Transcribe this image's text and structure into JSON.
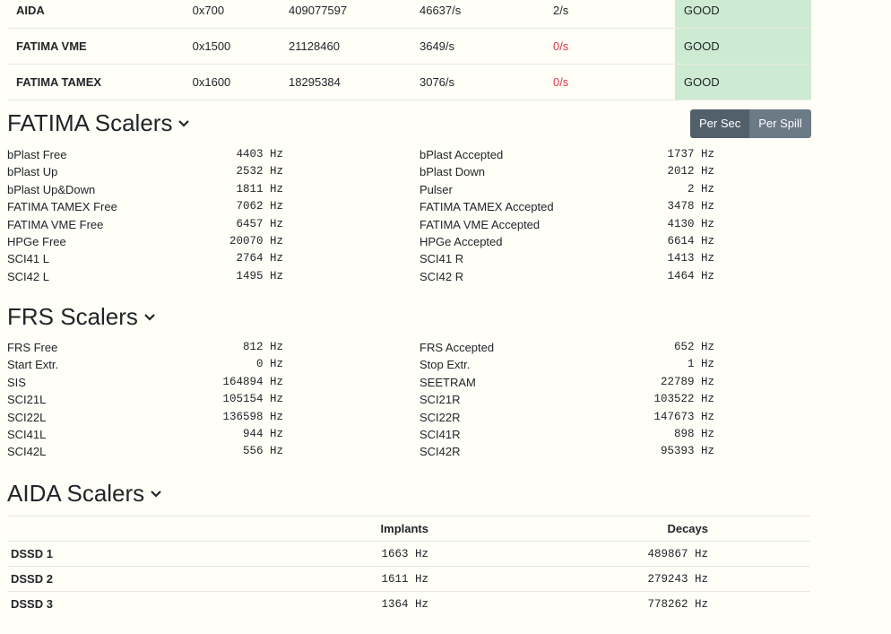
{
  "detectors": [
    {
      "name": "AIDA",
      "address": "0x700",
      "count": "409077597",
      "rate": "46637/s",
      "errors": "2/s",
      "errors_bad": false,
      "status": "GOOD"
    },
    {
      "name": "FATIMA VME",
      "address": "0x1500",
      "count": "21128460",
      "rate": "3649/s",
      "errors": "0/s",
      "errors_bad": true,
      "status": "GOOD"
    },
    {
      "name": "FATIMA TAMEX",
      "address": "0x1600",
      "count": "18295384",
      "rate": "3076/s",
      "errors": "0/s",
      "errors_bad": true,
      "status": "GOOD"
    }
  ],
  "fatima": {
    "title": "FATIMA Scalers",
    "per_sec_label": "Per Sec",
    "per_spill_label": "Per Spill",
    "rows": [
      {
        "l": "bPlast Free",
        "lv": "4403 Hz",
        "r": "bPlast Accepted",
        "rv": "1737 Hz"
      },
      {
        "l": "bPlast Up",
        "lv": "2532 Hz",
        "r": "bPlast Down",
        "rv": "2012 Hz"
      },
      {
        "l": "bPlast Up&Down",
        "lv": "1811 Hz",
        "r": "Pulser",
        "rv": "2 Hz"
      },
      {
        "l": "FATIMA TAMEX Free",
        "lv": "7062 Hz",
        "r": "FATIMA TAMEX Accepted",
        "rv": "3478 Hz"
      },
      {
        "l": "FATIMA VME Free",
        "lv": "6457 Hz",
        "r": "FATIMA VME Accepted",
        "rv": "4130 Hz"
      },
      {
        "l": "HPGe Free",
        "lv": "20070 Hz",
        "r": "HPGe Accepted",
        "rv": "6614 Hz"
      },
      {
        "l": "SCI41 L",
        "lv": "2764 Hz",
        "r": "SCI41 R",
        "rv": "1413 Hz"
      },
      {
        "l": "SCI42 L",
        "lv": "1495 Hz",
        "r": "SCI42 R",
        "rv": "1464 Hz"
      }
    ]
  },
  "frs": {
    "title": "FRS Scalers",
    "rows": [
      {
        "l": "FRS Free",
        "lv": "812 Hz",
        "r": "FRS Accepted",
        "rv": "652 Hz"
      },
      {
        "l": "Start Extr.",
        "lv": "0 Hz",
        "r": "Stop Extr.",
        "rv": "1 Hz"
      },
      {
        "l": "SIS",
        "lv": "164894 Hz",
        "r": "SEETRAM",
        "rv": "22789 Hz"
      },
      {
        "l": "SCI21L",
        "lv": "105154 Hz",
        "r": "SCI21R",
        "rv": "103522 Hz"
      },
      {
        "l": "SCI22L",
        "lv": "136598 Hz",
        "r": "SCI22R",
        "rv": "147673 Hz"
      },
      {
        "l": "SCI41L",
        "lv": "944 Hz",
        "r": "SCI41R",
        "rv": "898 Hz"
      },
      {
        "l": "SCI42L",
        "lv": "556 Hz",
        "r": "SCI42R",
        "rv": "95393 Hz"
      }
    ]
  },
  "aida": {
    "title": "AIDA Scalers",
    "col_implants": "Implants",
    "col_decays": "Decays",
    "rows": [
      {
        "name": "DSSD 1",
        "implants": "1663 Hz",
        "decays": "489867 Hz"
      },
      {
        "name": "DSSD 2",
        "implants": "1611 Hz",
        "decays": "279243 Hz"
      },
      {
        "name": "DSSD 3",
        "implants": "1364 Hz",
        "decays": "778262 Hz"
      }
    ]
  }
}
